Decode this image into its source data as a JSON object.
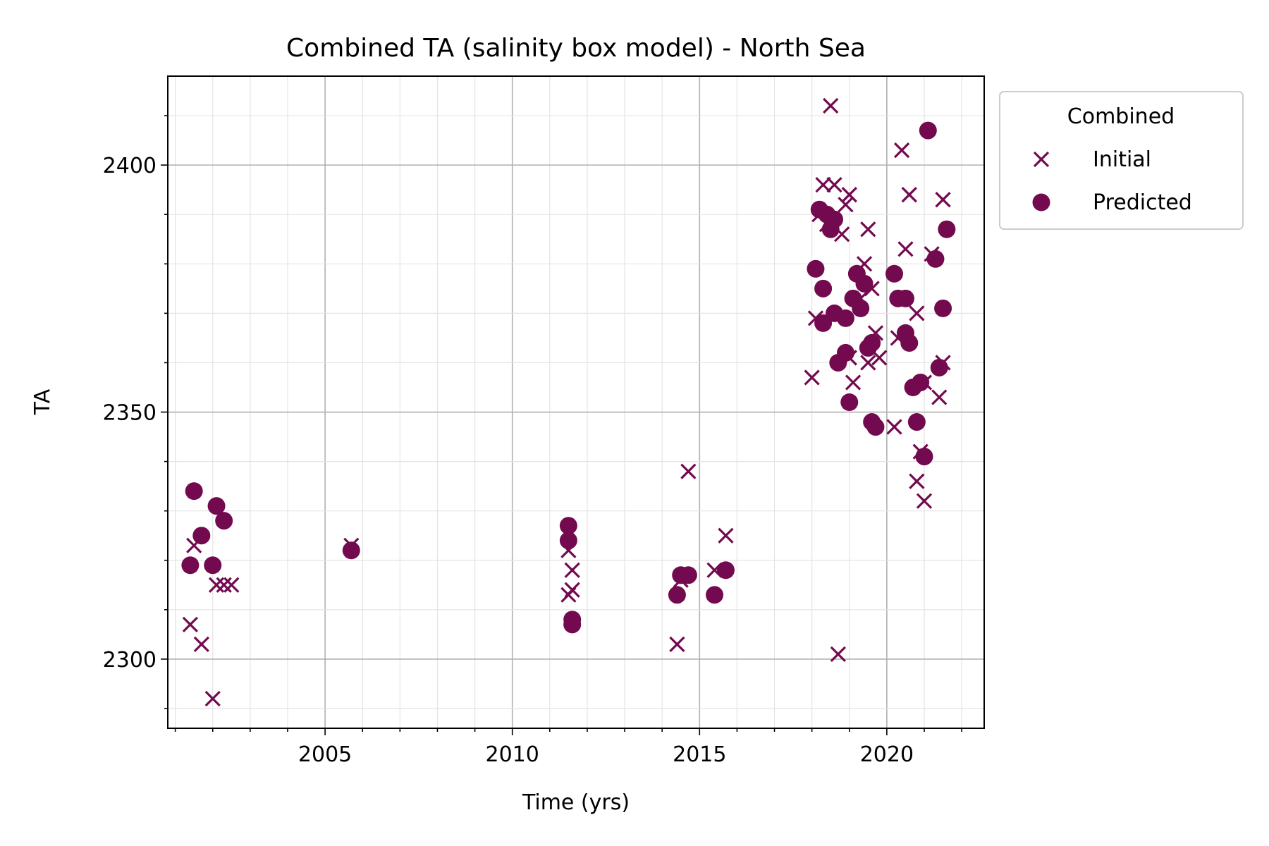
{
  "chart_data": {
    "type": "scatter",
    "title": "Combined TA (salinity box model) - North Sea",
    "xlabel": "Time (yrs)",
    "ylabel": "TA",
    "xlim": [
      2000.8,
      2022.6
    ],
    "ylim": [
      2286,
      2418
    ],
    "x_major_ticks": [
      2005,
      2010,
      2015,
      2020
    ],
    "x_tick_labels": [
      "2005",
      "2010",
      "2015",
      "2020"
    ],
    "y_major_ticks": [
      2300,
      2350,
      2400
    ],
    "y_tick_labels": [
      "2300",
      "2350",
      "2400"
    ],
    "grid": true,
    "legend": {
      "title": "Combined",
      "placement": "outside-upper-right",
      "entries": [
        "Initial",
        "Predicted"
      ]
    },
    "color": "#730a4f",
    "series": [
      {
        "name": "Initial",
        "marker": "x",
        "points": [
          [
            2001.4,
            2307
          ],
          [
            2001.5,
            2323
          ],
          [
            2001.7,
            2303
          ],
          [
            2002.0,
            2292
          ],
          [
            2002.1,
            2315
          ],
          [
            2002.3,
            2315
          ],
          [
            2002.5,
            2315
          ],
          [
            2005.7,
            2323
          ],
          [
            2011.5,
            2322
          ],
          [
            2011.5,
            2313
          ],
          [
            2011.6,
            2318
          ],
          [
            2011.6,
            2314
          ],
          [
            2014.4,
            2303
          ],
          [
            2014.5,
            2316
          ],
          [
            2014.7,
            2338
          ],
          [
            2015.4,
            2318
          ],
          [
            2015.7,
            2325
          ],
          [
            2018.0,
            2357
          ],
          [
            2018.1,
            2369
          ],
          [
            2018.2,
            2390
          ],
          [
            2018.3,
            2396
          ],
          [
            2018.4,
            2388
          ],
          [
            2018.5,
            2412
          ],
          [
            2018.6,
            2396
          ],
          [
            2018.7,
            2301
          ],
          [
            2018.8,
            2386
          ],
          [
            2018.9,
            2392
          ],
          [
            2019.0,
            2394
          ],
          [
            2019.0,
            2361
          ],
          [
            2019.1,
            2356
          ],
          [
            2019.3,
            2373
          ],
          [
            2019.4,
            2380
          ],
          [
            2019.5,
            2360
          ],
          [
            2019.5,
            2387
          ],
          [
            2019.6,
            2375
          ],
          [
            2019.7,
            2366
          ],
          [
            2019.8,
            2361
          ],
          [
            2020.2,
            2347
          ],
          [
            2020.3,
            2365
          ],
          [
            2020.4,
            2403
          ],
          [
            2020.5,
            2383
          ],
          [
            2020.6,
            2394
          ],
          [
            2020.8,
            2370
          ],
          [
            2020.9,
            2342
          ],
          [
            2020.8,
            2336
          ],
          [
            2021.0,
            2332
          ],
          [
            2021.0,
            2356
          ],
          [
            2021.2,
            2382
          ],
          [
            2021.4,
            2353
          ],
          [
            2021.5,
            2360
          ],
          [
            2021.5,
            2393
          ]
        ]
      },
      {
        "name": "Predicted",
        "marker": "o",
        "points": [
          [
            2001.4,
            2319
          ],
          [
            2001.5,
            2334
          ],
          [
            2001.7,
            2325
          ],
          [
            2002.0,
            2319
          ],
          [
            2002.1,
            2331
          ],
          [
            2002.3,
            2328
          ],
          [
            2005.7,
            2322
          ],
          [
            2011.5,
            2327
          ],
          [
            2011.5,
            2324
          ],
          [
            2011.6,
            2308
          ],
          [
            2011.6,
            2307
          ],
          [
            2014.4,
            2313
          ],
          [
            2014.5,
            2317
          ],
          [
            2014.7,
            2317
          ],
          [
            2015.4,
            2313
          ],
          [
            2015.7,
            2318
          ],
          [
            2018.1,
            2379
          ],
          [
            2018.2,
            2391
          ],
          [
            2018.3,
            2375
          ],
          [
            2018.3,
            2368
          ],
          [
            2018.4,
            2390
          ],
          [
            2018.5,
            2387
          ],
          [
            2018.6,
            2389
          ],
          [
            2018.6,
            2370
          ],
          [
            2018.7,
            2360
          ],
          [
            2018.9,
            2369
          ],
          [
            2018.9,
            2362
          ],
          [
            2019.0,
            2352
          ],
          [
            2019.1,
            2373
          ],
          [
            2019.2,
            2378
          ],
          [
            2019.3,
            2371
          ],
          [
            2019.4,
            2376
          ],
          [
            2019.5,
            2363
          ],
          [
            2019.6,
            2364
          ],
          [
            2019.6,
            2348
          ],
          [
            2019.7,
            2347
          ],
          [
            2020.2,
            2378
          ],
          [
            2020.3,
            2373
          ],
          [
            2020.5,
            2373
          ],
          [
            2020.5,
            2366
          ],
          [
            2020.6,
            2364
          ],
          [
            2020.7,
            2355
          ],
          [
            2020.8,
            2348
          ],
          [
            2020.9,
            2356
          ],
          [
            2021.0,
            2341
          ],
          [
            2021.1,
            2407
          ],
          [
            2021.3,
            2381
          ],
          [
            2021.4,
            2359
          ],
          [
            2021.5,
            2371
          ],
          [
            2021.6,
            2387
          ]
        ]
      }
    ]
  }
}
